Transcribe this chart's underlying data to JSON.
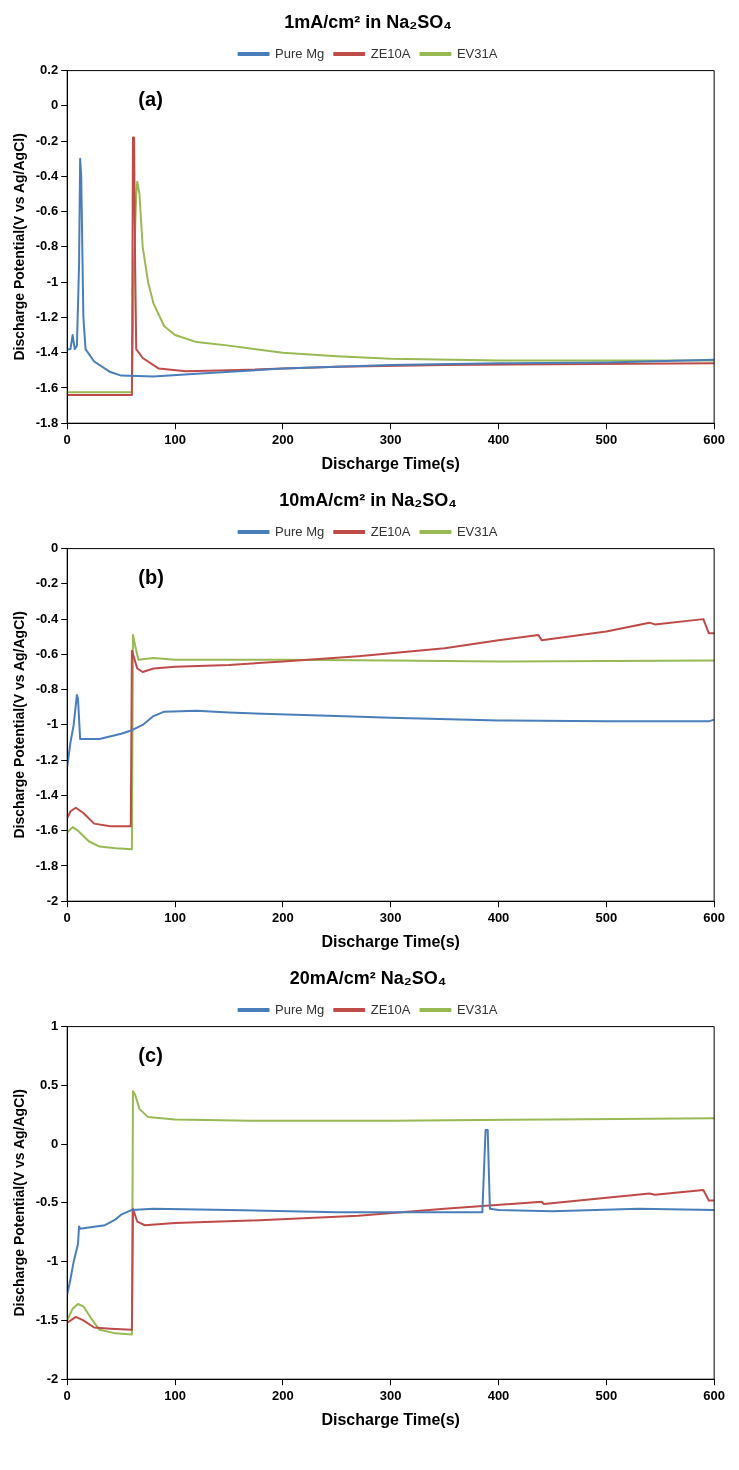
{
  "chart_data": [
    {
      "type": "line",
      "title": "1mA/cm² in Na₂SO₄",
      "xlabel": "Discharge Time(s)",
      "ylabel": "Discharge Potential(V vs Ag/AgCl)",
      "annotations": [
        "(a)"
      ],
      "xlim": [
        0,
        600
      ],
      "xticks": [
        0,
        100,
        200,
        300,
        400,
        500,
        600
      ],
      "ylim": [
        -1.8,
        0.2
      ],
      "yticks": [
        -1.8,
        -1.6,
        -1.4,
        -1.2,
        -1,
        -0.8,
        -0.6,
        -0.4,
        -0.2,
        0,
        0.2
      ],
      "grid": false,
      "legend": "top",
      "marker": "none",
      "line_style": "solid",
      "series": [
        {
          "name": "Pure Mg",
          "color": "#4a7ebb",
          "x": [
            0,
            3,
            5,
            7,
            9,
            11,
            12,
            13,
            15,
            17,
            25,
            40,
            50,
            80,
            120,
            200,
            300,
            400,
            500,
            600
          ],
          "values": [
            -1.38,
            -1.38,
            -1.3,
            -1.38,
            -1.36,
            -0.9,
            -0.3,
            -0.4,
            -1.2,
            -1.38,
            -1.45,
            -1.51,
            -1.53,
            -1.535,
            -1.52,
            -1.49,
            -1.47,
            -1.46,
            -1.455,
            -1.44
          ]
        },
        {
          "name": "ZE10A",
          "color": "#be4b48",
          "x": [
            0,
            60,
            61,
            62,
            63,
            64,
            70,
            85,
            110,
            150,
            250,
            350,
            450,
            600
          ],
          "values": [
            -1.64,
            -1.64,
            -0.18,
            -0.18,
            -0.9,
            -1.38,
            -1.43,
            -1.49,
            -1.505,
            -1.5,
            -1.48,
            -1.47,
            -1.465,
            -1.46
          ]
        },
        {
          "name": "EV31A",
          "color": "#98b954",
          "x": [
            0,
            60,
            62,
            64,
            65,
            67,
            70,
            75,
            80,
            90,
            100,
            120,
            150,
            200,
            250,
            300,
            400,
            600
          ],
          "values": [
            -1.625,
            -1.625,
            -0.9,
            -0.5,
            -0.43,
            -0.5,
            -0.8,
            -1.0,
            -1.12,
            -1.25,
            -1.3,
            -1.34,
            -1.36,
            -1.4,
            -1.42,
            -1.435,
            -1.445,
            -1.445
          ]
        }
      ]
    },
    {
      "type": "line",
      "title": "10mA/cm² in Na₂SO₄",
      "xlabel": "Discharge Time(s)",
      "ylabel": "Discharge Potential(V vs Ag/AgCl)",
      "annotations": [
        "(b)"
      ],
      "xlim": [
        0,
        600
      ],
      "xticks": [
        0,
        100,
        200,
        300,
        400,
        500,
        600
      ],
      "ylim": [
        -2,
        0
      ],
      "yticks": [
        -2,
        -1.8,
        -1.6,
        -1.4,
        -1.2,
        -1,
        -0.8,
        -0.6,
        -0.4,
        -0.2,
        0
      ],
      "grid": false,
      "legend": "top",
      "marker": "none",
      "line_style": "solid",
      "series": [
        {
          "name": "Pure Mg",
          "color": "#4a7ebb",
          "x": [
            0,
            3,
            6,
            9,
            10,
            12,
            30,
            50,
            60,
            70,
            80,
            90,
            120,
            150,
            250,
            300,
            400,
            500,
            595,
            600
          ],
          "values": [
            -1.24,
            -1.1,
            -1.0,
            -0.83,
            -0.85,
            -1.08,
            -1.08,
            -1.05,
            -1.03,
            -1.0,
            -0.95,
            -0.925,
            -0.92,
            -0.93,
            -0.95,
            -0.96,
            -0.975,
            -0.98,
            -0.98,
            -0.97
          ]
        },
        {
          "name": "ZE10A",
          "color": "#be4b48",
          "x": [
            0,
            3,
            8,
            15,
            25,
            40,
            59,
            60,
            62,
            65,
            70,
            80,
            100,
            150,
            200,
            270,
            350,
            400,
            437,
            440,
            500,
            540,
            545,
            590,
            595,
            600
          ],
          "values": [
            -1.53,
            -1.49,
            -1.47,
            -1.5,
            -1.56,
            -1.575,
            -1.575,
            -0.58,
            -0.62,
            -0.68,
            -0.7,
            -0.68,
            -0.67,
            -0.66,
            -0.64,
            -0.61,
            -0.565,
            -0.52,
            -0.49,
            -0.52,
            -0.47,
            -0.42,
            -0.43,
            -0.4,
            -0.48,
            -0.48
          ]
        },
        {
          "name": "EV31A",
          "color": "#98b954",
          "x": [
            0,
            5,
            10,
            20,
            30,
            45,
            60,
            61,
            63,
            66,
            80,
            100,
            200,
            300,
            400,
            600
          ],
          "values": [
            -1.61,
            -1.58,
            -1.6,
            -1.66,
            -1.69,
            -1.7,
            -1.705,
            -0.49,
            -0.55,
            -0.63,
            -0.62,
            -0.63,
            -0.63,
            -0.635,
            -0.64,
            -0.635
          ]
        }
      ]
    },
    {
      "type": "line",
      "title": "20mA/cm² Na₂SO₄",
      "xlabel": "Discharge Time(s)",
      "ylabel": "Discharge Potential(V vs Ag/AgCl)",
      "annotations": [
        "(c)"
      ],
      "xlim": [
        0,
        600
      ],
      "xticks": [
        0,
        100,
        200,
        300,
        400,
        500,
        600
      ],
      "ylim": [
        -2,
        1
      ],
      "yticks": [
        -2,
        -1.5,
        -1,
        -0.5,
        0,
        0.5,
        1
      ],
      "grid": false,
      "legend": "top",
      "marker": "none",
      "line_style": "solid",
      "series": [
        {
          "name": "Pure Mg",
          "color": "#4a7ebb",
          "x": [
            0,
            3,
            6,
            10,
            11,
            12,
            20,
            35,
            45,
            50,
            60,
            80,
            150,
            250,
            385,
            388,
            390,
            392,
            400,
            450,
            530,
            600
          ],
          "values": [
            -1.28,
            -1.15,
            -1.0,
            -0.85,
            -0.7,
            -0.72,
            -0.71,
            -0.69,
            -0.64,
            -0.6,
            -0.56,
            -0.55,
            -0.56,
            -0.58,
            -0.58,
            0.12,
            0.12,
            -0.55,
            -0.56,
            -0.57,
            -0.55,
            -0.56
          ]
        },
        {
          "name": "ZE10A",
          "color": "#be4b48",
          "x": [
            0,
            8,
            15,
            25,
            40,
            60,
            61,
            65,
            72,
            100,
            170,
            270,
            350,
            440,
            442,
            540,
            545,
            590,
            595,
            600
          ],
          "values": [
            -1.52,
            -1.47,
            -1.5,
            -1.56,
            -1.57,
            -1.58,
            -0.55,
            -0.66,
            -0.69,
            -0.67,
            -0.65,
            -0.61,
            -0.55,
            -0.49,
            -0.51,
            -0.42,
            -0.43,
            -0.39,
            -0.48,
            -0.48
          ]
        },
        {
          "name": "EV31A",
          "color": "#98b954",
          "x": [
            0,
            5,
            10,
            15,
            22,
            30,
            45,
            60,
            61,
            63,
            67,
            75,
            100,
            170,
            300,
            450,
            600
          ],
          "values": [
            -1.5,
            -1.4,
            -1.36,
            -1.38,
            -1.48,
            -1.58,
            -1.61,
            -1.62,
            0.45,
            0.42,
            0.3,
            0.23,
            0.21,
            0.2,
            0.2,
            0.21,
            0.22
          ]
        }
      ]
    }
  ]
}
